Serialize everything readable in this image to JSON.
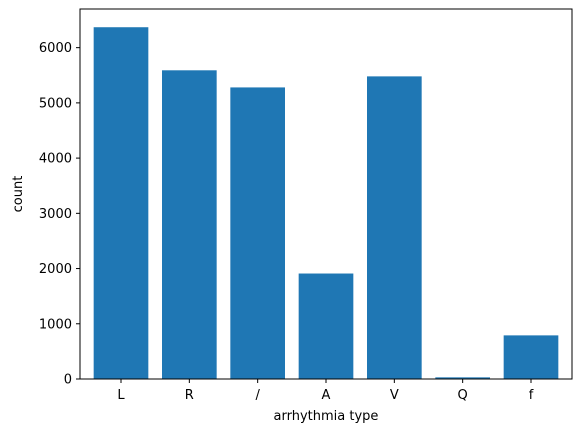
{
  "chart_data": {
    "type": "bar",
    "title": "",
    "xlabel": "arrhythmia type",
    "ylabel": "count",
    "categories": [
      "L",
      "R",
      "/",
      "A",
      "V",
      "Q",
      "f"
    ],
    "values": [
      6370,
      5590,
      5280,
      1910,
      5480,
      30,
      790
    ],
    "ylim": [
      0,
      6700
    ],
    "yticks": [
      0,
      1000,
      2000,
      3000,
      4000,
      5000,
      6000
    ],
    "grid": false,
    "legend": "none",
    "bar_color": "#1f77b4"
  }
}
